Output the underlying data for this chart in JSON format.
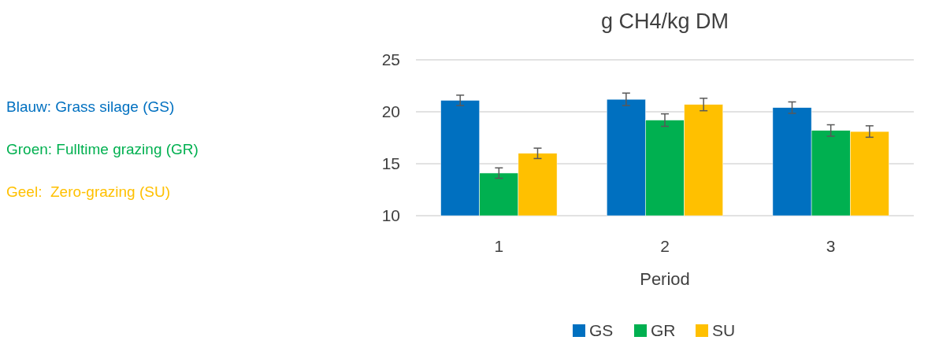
{
  "chart_data": {
    "type": "bar",
    "title": "g CH4/kg DM",
    "xlabel": "Period",
    "categories": [
      "1",
      "2",
      "3"
    ],
    "series": [
      {
        "name": "GS",
        "color": "#0070c0",
        "values": [
          21.1,
          21.2,
          20.4
        ],
        "errors": [
          0.5,
          0.6,
          0.55
        ]
      },
      {
        "name": "GR",
        "color": "#00b050",
        "values": [
          14.1,
          19.2,
          18.2
        ],
        "errors": [
          0.5,
          0.6,
          0.55
        ]
      },
      {
        "name": "SU",
        "color": "#ffc000",
        "values": [
          16.0,
          20.7,
          18.1
        ],
        "errors": [
          0.5,
          0.6,
          0.55
        ]
      }
    ],
    "ylim": [
      10,
      25
    ],
    "yticks": [
      10,
      15,
      20,
      25
    ],
    "grid": "y",
    "legend": "bottom",
    "annotations": [
      "Blauw: Grass silage (GS)",
      "Groen: Fulltime grazing (GR)",
      "Geel:  Zero-grazing (SU)"
    ]
  }
}
